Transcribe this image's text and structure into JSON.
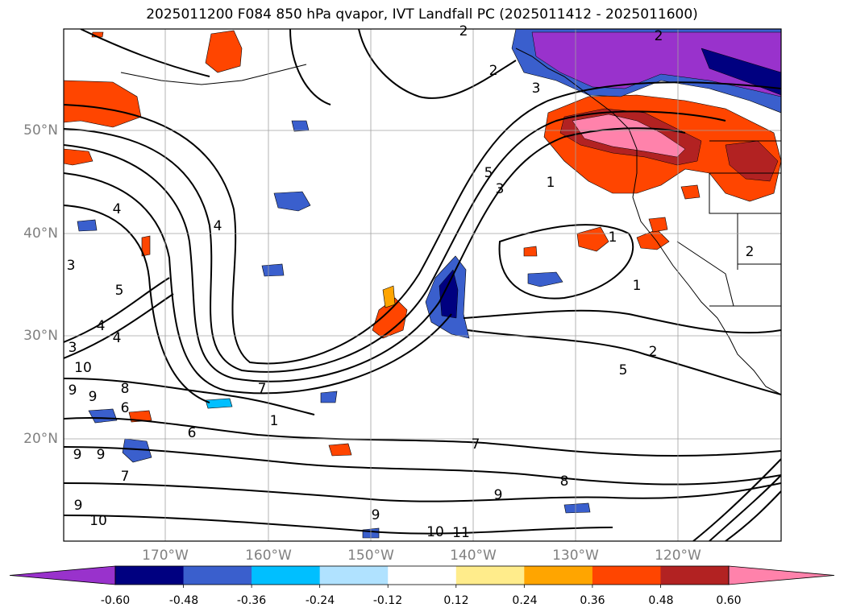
{
  "title": "2025011200 F084 850 hPa qvapor, IVT Landfall PC (2025011412 - 2025011600)",
  "lat_labels": [
    "50°N",
    "40°N",
    "30°N",
    "20°N"
  ],
  "lon_labels": [
    "170°W",
    "160°W",
    "150°W",
    "140°W",
    "130°W",
    "120°W"
  ],
  "colorbar": {
    "colors": [
      "#9932cc",
      "#000080",
      "#3a5fcd",
      "#00bfff",
      "#b0e2ff",
      "#ffffff",
      "#ffec8b",
      "#ffa500",
      "#ff4500",
      "#b22222",
      "#ff82ab"
    ],
    "tick_labels": [
      "-0.60",
      "-0.48",
      "-0.36",
      "-0.24",
      "-0.12",
      "0.12",
      "0.24",
      "0.36",
      "0.48",
      "0.60"
    ]
  },
  "contour_labels": [
    "2",
    "2",
    "2",
    "3",
    "4",
    "5",
    "3",
    "1",
    "1",
    "1",
    "2",
    "5",
    "4",
    "3",
    "4",
    "5",
    "4",
    "3",
    "10",
    "9",
    "9",
    "8",
    "6",
    "6",
    "7",
    "1",
    "7",
    "8",
    "9",
    "10",
    "11",
    "9",
    "9",
    "9",
    "9",
    "7",
    "10",
    "2"
  ]
}
